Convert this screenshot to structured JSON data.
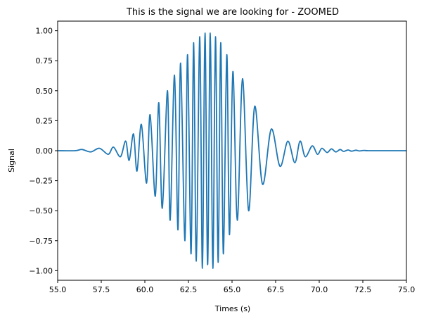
{
  "chart_data": {
    "type": "line",
    "title": "This is the signal we are looking for - ZOOMED",
    "xlabel": "Times (s)",
    "ylabel": "Signal",
    "xlim": [
      55.0,
      75.0
    ],
    "ylim": [
      -1.08,
      1.08
    ],
    "xticks": [
      55.0,
      57.5,
      60.0,
      62.5,
      65.0,
      67.5,
      70.0,
      72.5,
      75.0
    ],
    "xtick_labels": [
      "55.0",
      "57.5",
      "60.0",
      "62.5",
      "65.0",
      "67.5",
      "70.0",
      "72.5",
      "75.0"
    ],
    "yticks": [
      1.0,
      0.75,
      0.5,
      0.25,
      0.0,
      -0.25,
      -0.5,
      -0.75,
      -1.0
    ],
    "ytick_labels": [
      "1.00",
      "0.75",
      "0.50",
      "0.25",
      "0.00",
      "−0.25",
      "−0.50",
      "−0.75",
      "−1.00"
    ],
    "grid": false,
    "series": [
      {
        "color": "#1f77b4",
        "x": [
          55.0,
          56.0,
          56.4,
          56.9,
          57.4,
          57.9,
          58.2,
          58.6,
          58.9,
          59.1,
          59.35,
          59.55,
          59.8,
          60.1,
          60.3,
          60.6,
          60.8,
          61.0,
          61.3,
          61.45,
          61.7,
          61.9,
          62.05,
          62.3,
          62.45,
          62.65,
          62.8,
          62.95,
          63.15,
          63.3,
          63.45,
          63.6,
          63.75,
          63.9,
          64.05,
          64.2,
          64.35,
          64.5,
          64.7,
          64.85,
          65.05,
          65.3,
          65.6,
          65.95,
          66.3,
          66.75,
          67.25,
          67.75,
          68.2,
          68.6,
          68.9,
          69.2,
          69.6,
          69.9,
          70.15,
          70.45,
          70.7,
          70.95,
          71.2,
          71.4,
          71.65,
          71.85,
          72.1,
          72.3,
          72.55,
          72.8,
          73.2,
          75.0
        ],
        "y": [
          0.0,
          0.0,
          0.01,
          -0.01,
          0.02,
          -0.03,
          0.03,
          -0.05,
          0.08,
          -0.08,
          0.14,
          -0.17,
          0.22,
          -0.27,
          0.3,
          -0.38,
          0.4,
          -0.48,
          0.5,
          -0.58,
          0.63,
          -0.66,
          0.73,
          -0.75,
          0.8,
          -0.86,
          0.9,
          -0.92,
          0.95,
          -0.98,
          0.98,
          -0.95,
          0.98,
          -0.98,
          0.95,
          -0.93,
          0.9,
          -0.86,
          0.8,
          -0.7,
          0.66,
          -0.58,
          0.6,
          -0.5,
          0.37,
          -0.28,
          0.18,
          -0.13,
          0.08,
          -0.1,
          0.08,
          -0.05,
          0.04,
          -0.03,
          0.02,
          -0.015,
          0.015,
          -0.01,
          0.01,
          -0.006,
          0.006,
          -0.004,
          0.004,
          -0.002,
          0.002,
          0.0,
          0.0,
          0.0
        ]
      }
    ]
  }
}
